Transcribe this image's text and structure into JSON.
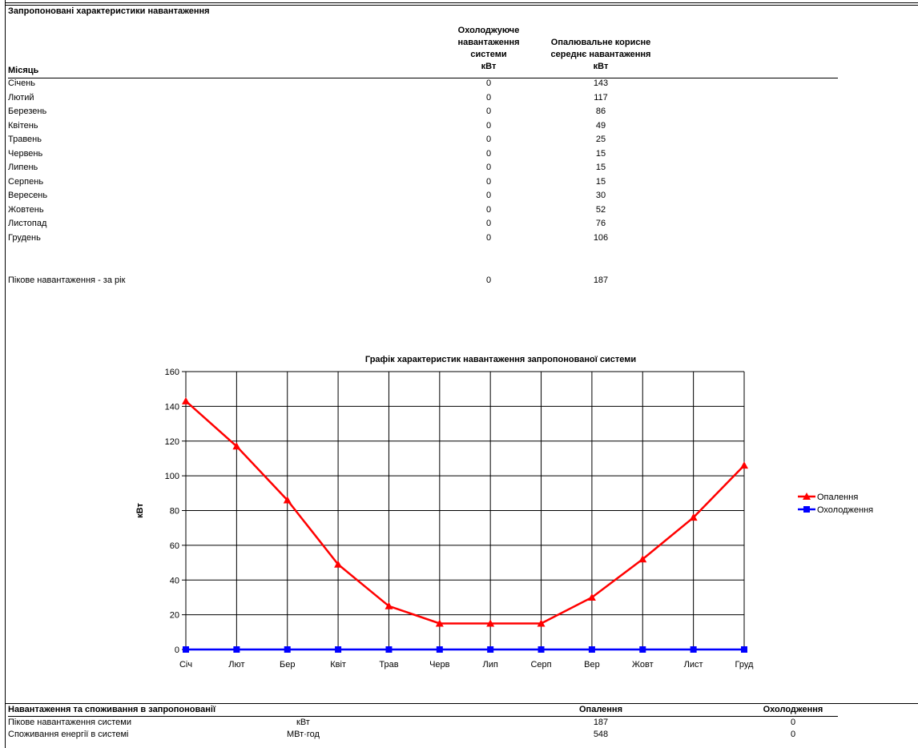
{
  "section1": {
    "title": "Запропоновані характеристики навантаження",
    "col_month": "Місяць",
    "col_cooling_lines": [
      "Охолоджуюче",
      "навантаження",
      "системи"
    ],
    "col_cooling_unit": "кВт",
    "col_heating_lines": [
      "Опалювальне корисне",
      "середнє навантаження"
    ],
    "col_heating_unit": "кВт",
    "rows": [
      {
        "month": "Січень",
        "cooling": "0",
        "heating": "143"
      },
      {
        "month": "Лютий",
        "cooling": "0",
        "heating": "117"
      },
      {
        "month": "Березень",
        "cooling": "0",
        "heating": "86"
      },
      {
        "month": "Квітень",
        "cooling": "0",
        "heating": "49"
      },
      {
        "month": "Травень",
        "cooling": "0",
        "heating": "25"
      },
      {
        "month": "Червень",
        "cooling": "0",
        "heating": "15"
      },
      {
        "month": "Липень",
        "cooling": "0",
        "heating": "15"
      },
      {
        "month": "Серпень",
        "cooling": "0",
        "heating": "15"
      },
      {
        "month": "Вересень",
        "cooling": "0",
        "heating": "30"
      },
      {
        "month": "Жовтень",
        "cooling": "0",
        "heating": "52"
      },
      {
        "month": "Листопад",
        "cooling": "0",
        "heating": "76"
      },
      {
        "month": "Грудень",
        "cooling": "0",
        "heating": "106"
      }
    ],
    "peak": {
      "label": "Пікове навантаження - за рік",
      "cooling": "0",
      "heating": "187"
    }
  },
  "chart_data": {
    "type": "line",
    "title": "Графік характеристик навантаження запропонованої системи",
    "ylabel": "кВт",
    "xlabel": "",
    "categories": [
      "Січ",
      "Лют",
      "Бер",
      "Квіт",
      "Трав",
      "Черв",
      "Лип",
      "Серп",
      "Вер",
      "Жовт",
      "Лист",
      "Груд"
    ],
    "ylim": [
      0,
      160
    ],
    "yticks": [
      0,
      20,
      40,
      60,
      80,
      100,
      120,
      140,
      160
    ],
    "grid": true,
    "legend": "right",
    "series": [
      {
        "name": "Опалення",
        "values": [
          143,
          117,
          86,
          49,
          25,
          15,
          15,
          15,
          30,
          52,
          76,
          106
        ],
        "color": "#ff0000",
        "marker": "triangle"
      },
      {
        "name": "Охолодження",
        "values": [
          0,
          0,
          0,
          0,
          0,
          0,
          0,
          0,
          0,
          0,
          0,
          0
        ],
        "color": "#0000ff",
        "marker": "square"
      }
    ]
  },
  "section2": {
    "title": "Навантаження та споживання в запропонованії",
    "col_heating": "Опалення",
    "col_cooling": "Охолодження",
    "rows": [
      {
        "label": "Пікове навантаження системи",
        "unit": "кВт",
        "heating": "187",
        "cooling": "0"
      },
      {
        "label": "Споживання енергії в системі",
        "unit": "МВт·год",
        "heating": "548",
        "cooling": "0"
      }
    ]
  }
}
